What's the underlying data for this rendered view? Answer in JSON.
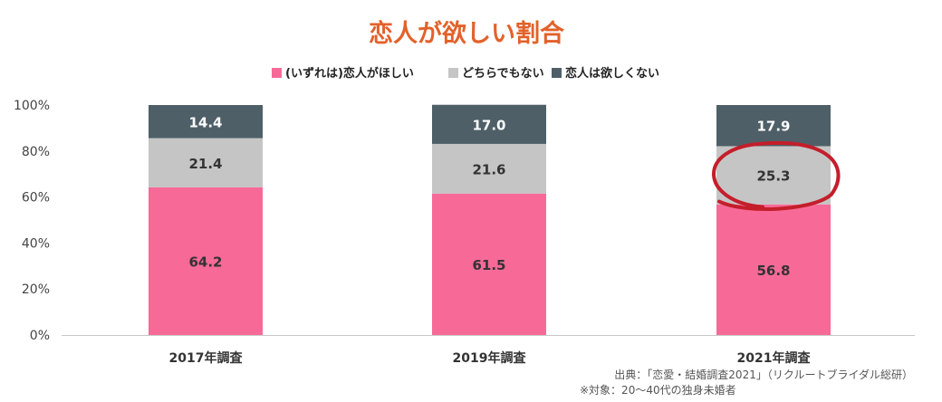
{
  "chart_data": {
    "type": "bar",
    "stacked": true,
    "title": "恋人が欲しい割合",
    "categories": [
      "2017年調査",
      "2019年調査",
      "2021年調査"
    ],
    "series": [
      {
        "name": "(いずれは)恋人がほしい",
        "values": [
          64.2,
          61.5,
          56.8
        ],
        "color": "#f76a98",
        "label_color": "#333333"
      },
      {
        "name": "どちらでもない",
        "values": [
          21.4,
          21.6,
          25.3
        ],
        "color": "#c5c5c5",
        "label_color": "#333333"
      },
      {
        "name": "恋人は欲しくない",
        "values": [
          14.4,
          17.0,
          17.9
        ],
        "color": "#4f5f68",
        "label_color": "#ffffff"
      }
    ],
    "value_labels": [
      [
        "64.2",
        "61.5",
        "56.8"
      ],
      [
        "21.4",
        "21.6",
        "25.3"
      ],
      [
        "14.4",
        "17.0",
        "17.9"
      ]
    ],
    "ylim": [
      0,
      100
    ],
    "yticks": [
      "0%",
      "20%",
      "40%",
      "60%",
      "80%",
      "100%"
    ],
    "legend_position": "top-center",
    "grid": false,
    "highlight": {
      "category_index": 2,
      "series_index": 1,
      "color": "#c41e2a"
    },
    "title_color": "#e2622a"
  },
  "source": {
    "line1": "出典：「恋愛・結婚調査2021」（リクルートブライダル総研）",
    "line2": "※対象：20〜40代の独身未婚者"
  }
}
